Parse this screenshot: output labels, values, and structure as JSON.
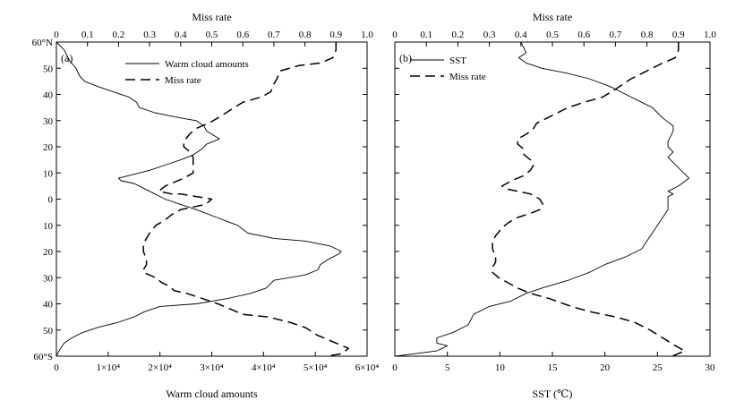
{
  "chart_data": [
    {
      "type": "line",
      "panel_label": "(a)",
      "title": "",
      "xlabel_bottom": "Warm cloud amounts",
      "xlabel_top": "Miss rate",
      "ylabel": "",
      "x_bottom_lim": [
        0,
        60000
      ],
      "x_bottom_ticks": [
        {
          "v": 0,
          "label": "0"
        },
        {
          "v": 10000,
          "label": "1×10⁴"
        },
        {
          "v": 20000,
          "label": "2×10⁴"
        },
        {
          "v": 30000,
          "label": "3×10⁴"
        },
        {
          "v": 40000,
          "label": "4×10⁴"
        },
        {
          "v": 50000,
          "label": "5×10⁴"
        },
        {
          "v": 60000,
          "label": "6×10⁴"
        }
      ],
      "x_top_lim": [
        0,
        1.0
      ],
      "x_top_ticks": [
        {
          "v": 0,
          "label": "0"
        },
        {
          "v": 0.1,
          "label": "0.1"
        },
        {
          "v": 0.2,
          "label": "0.2"
        },
        {
          "v": 0.3,
          "label": "0.3"
        },
        {
          "v": 0.4,
          "label": "0.4"
        },
        {
          "v": 0.5,
          "label": "0.5"
        },
        {
          "v": 0.6,
          "label": "0.6"
        },
        {
          "v": 0.7,
          "label": "0.7"
        },
        {
          "v": 0.8,
          "label": "0.8"
        },
        {
          "v": 0.9,
          "label": "0.9"
        },
        {
          "v": 1.0,
          "label": "1.0"
        }
      ],
      "ylim": [
        -60,
        60
      ],
      "y_ticks": [
        {
          "v": 60,
          "label": "60°N"
        },
        {
          "v": 50,
          "label": "50"
        },
        {
          "v": 40,
          "label": "40"
        },
        {
          "v": 30,
          "label": "30"
        },
        {
          "v": 20,
          "label": "20"
        },
        {
          "v": 10,
          "label": "10"
        },
        {
          "v": 0,
          "label": "0"
        },
        {
          "v": -10,
          "label": "10"
        },
        {
          "v": -20,
          "label": "20"
        },
        {
          "v": -30,
          "label": "30"
        },
        {
          "v": -40,
          "label": "40"
        },
        {
          "v": -50,
          "label": "50"
        },
        {
          "v": -60,
          "label": "60°S"
        }
      ],
      "series": [
        {
          "name": "Warm cloud amounts",
          "axis": "bottom",
          "style": "solid",
          "points": [
            [
              0,
              60
            ],
            [
              1500,
              57
            ],
            [
              2500,
              53
            ],
            [
              3800,
              50
            ],
            [
              4500,
              47
            ],
            [
              5500,
              45
            ],
            [
              8000,
              43
            ],
            [
              11000,
              41
            ],
            [
              14000,
              39
            ],
            [
              15500,
              37
            ],
            [
              16000,
              35
            ],
            [
              19000,
              33
            ],
            [
              24000,
              31
            ],
            [
              27000,
              30
            ],
            [
              28500,
              28
            ],
            [
              29000,
              26
            ],
            [
              31500,
              23
            ],
            [
              29000,
              21
            ],
            [
              28000,
              19
            ],
            [
              26500,
              17
            ],
            [
              24000,
              15
            ],
            [
              21000,
              13
            ],
            [
              18000,
              11
            ],
            [
              14000,
              9
            ],
            [
              12000,
              8
            ],
            [
              12500,
              7
            ],
            [
              15000,
              6
            ],
            [
              17000,
              4
            ],
            [
              19000,
              2
            ],
            [
              20000,
              1
            ],
            [
              21000,
              0
            ],
            [
              24000,
              -2
            ],
            [
              27000,
              -4
            ],
            [
              31000,
              -7
            ],
            [
              35000,
              -10
            ],
            [
              37000,
              -13
            ],
            [
              42000,
              -15
            ],
            [
              48000,
              -16
            ],
            [
              53000,
              -18
            ],
            [
              55000,
              -20
            ],
            [
              54500,
              -21
            ],
            [
              52500,
              -23
            ],
            [
              51000,
              -25
            ],
            [
              50500,
              -27
            ],
            [
              48000,
              -29
            ],
            [
              42000,
              -31
            ],
            [
              40500,
              -34
            ],
            [
              37500,
              -36
            ],
            [
              33000,
              -38
            ],
            [
              27000,
              -40
            ],
            [
              20000,
              -41
            ],
            [
              17000,
              -43
            ],
            [
              15000,
              -45
            ],
            [
              12000,
              -47
            ],
            [
              8000,
              -49
            ],
            [
              5000,
              -51
            ],
            [
              3000,
              -53
            ],
            [
              1500,
              -55
            ],
            [
              500,
              -58
            ],
            [
              0,
              -60
            ]
          ]
        },
        {
          "name": "Miss rate",
          "axis": "top",
          "style": "dashed",
          "points": [
            [
              0.9,
              60
            ],
            [
              0.9,
              57
            ],
            [
              0.89,
              54
            ],
            [
              0.85,
              52
            ],
            [
              0.78,
              51
            ],
            [
              0.72,
              49
            ],
            [
              0.71,
              46
            ],
            [
              0.7,
              44
            ],
            [
              0.69,
              41
            ],
            [
              0.66,
              39
            ],
            [
              0.6,
              37
            ],
            [
              0.56,
              34
            ],
            [
              0.52,
              31
            ],
            [
              0.49,
              29
            ],
            [
              0.45,
              27
            ],
            [
              0.43,
              25
            ],
            [
              0.41,
              22
            ],
            [
              0.41,
              20
            ],
            [
              0.43,
              18
            ],
            [
              0.44,
              16
            ],
            [
              0.44,
              14
            ],
            [
              0.44,
              12
            ],
            [
              0.44,
              10
            ],
            [
              0.41,
              8
            ],
            [
              0.35,
              5
            ],
            [
              0.33,
              3
            ],
            [
              0.37,
              2
            ],
            [
              0.4,
              2
            ],
            [
              0.45,
              1
            ],
            [
              0.5,
              0
            ],
            [
              0.48,
              -2
            ],
            [
              0.44,
              -3
            ],
            [
              0.4,
              -4
            ],
            [
              0.37,
              -6
            ],
            [
              0.35,
              -8
            ],
            [
              0.32,
              -10
            ],
            [
              0.3,
              -13
            ],
            [
              0.29,
              -15
            ],
            [
              0.28,
              -17
            ],
            [
              0.28,
              -20
            ],
            [
              0.29,
              -23
            ],
            [
              0.29,
              -25
            ],
            [
              0.28,
              -27
            ],
            [
              0.28,
              -28
            ],
            [
              0.3,
              -29
            ],
            [
              0.32,
              -30
            ],
            [
              0.34,
              -32
            ],
            [
              0.36,
              -33
            ],
            [
              0.38,
              -35
            ],
            [
              0.42,
              -36
            ],
            [
              0.47,
              -38
            ],
            [
              0.52,
              -40
            ],
            [
              0.56,
              -42
            ],
            [
              0.6,
              -44
            ],
            [
              0.68,
              -45
            ],
            [
              0.75,
              -47
            ],
            [
              0.8,
              -49
            ],
            [
              0.84,
              -52
            ],
            [
              0.88,
              -54
            ],
            [
              0.92,
              -56
            ],
            [
              0.94,
              -57
            ],
            [
              0.92,
              -59
            ],
            [
              0.87,
              -60
            ]
          ]
        }
      ],
      "legend": "top-left"
    },
    {
      "type": "line",
      "panel_label": "(b)",
      "title": "",
      "xlabel_bottom": "SST (℃)",
      "xlabel_top": "Miss rate",
      "ylabel": "",
      "x_bottom_lim": [
        0,
        30
      ],
      "x_bottom_ticks": [
        {
          "v": 0,
          "label": "0"
        },
        {
          "v": 5,
          "label": "5"
        },
        {
          "v": 10,
          "label": "10"
        },
        {
          "v": 15,
          "label": "15"
        },
        {
          "v": 20,
          "label": "20"
        },
        {
          "v": 25,
          "label": "25"
        },
        {
          "v": 30,
          "label": "30"
        }
      ],
      "x_top_lim": [
        0,
        1.0
      ],
      "x_top_ticks": [
        {
          "v": 0,
          "label": "0"
        },
        {
          "v": 0.1,
          "label": "0.1"
        },
        {
          "v": 0.2,
          "label": "0.2"
        },
        {
          "v": 0.3,
          "label": "0.3"
        },
        {
          "v": 0.4,
          "label": "0.4"
        },
        {
          "v": 0.5,
          "label": "0.5"
        },
        {
          "v": 0.6,
          "label": "0.6"
        },
        {
          "v": 0.7,
          "label": "0.7"
        },
        {
          "v": 0.8,
          "label": "0.8"
        },
        {
          "v": 0.9,
          "label": "0.9"
        },
        {
          "v": 1.0,
          "label": "1.0"
        }
      ],
      "ylim": [
        -60,
        60
      ],
      "series": [
        {
          "name": "SST",
          "axis": "bottom",
          "style": "solid",
          "points": [
            [
              12,
              60
            ],
            [
              12.5,
              56
            ],
            [
              11.8,
              54
            ],
            [
              12.5,
              52
            ],
            [
              14,
              50
            ],
            [
              16.5,
              48
            ],
            [
              18.5,
              46
            ],
            [
              20.5,
              43
            ],
            [
              22,
              40
            ],
            [
              23.5,
              37
            ],
            [
              24.5,
              35
            ],
            [
              25.5,
              31
            ],
            [
              26.5,
              28
            ],
            [
              26.5,
              26
            ],
            [
              26,
              22
            ],
            [
              26,
              20
            ],
            [
              26.5,
              18
            ],
            [
              26,
              16
            ],
            [
              26.5,
              14
            ],
            [
              27.5,
              10
            ],
            [
              28,
              8
            ],
            [
              27,
              5
            ],
            [
              26,
              3
            ],
            [
              26.5,
              2
            ],
            [
              26,
              1
            ],
            [
              26,
              -1
            ],
            [
              26,
              -4
            ],
            [
              25.5,
              -7
            ],
            [
              25,
              -10
            ],
            [
              24.5,
              -13
            ],
            [
              24,
              -16
            ],
            [
              23.5,
              -19
            ],
            [
              22,
              -22
            ],
            [
              20,
              -25
            ],
            [
              18.5,
              -28
            ],
            [
              16.5,
              -31
            ],
            [
              14,
              -34
            ],
            [
              12.5,
              -36
            ],
            [
              11,
              -39
            ],
            [
              9,
              -41
            ],
            [
              7.5,
              -44
            ],
            [
              7,
              -48
            ],
            [
              5.5,
              -51
            ],
            [
              4,
              -53
            ],
            [
              4,
              -55
            ],
            [
              5,
              -56
            ],
            [
              4,
              -58
            ],
            [
              2,
              -59
            ],
            [
              0,
              -60
            ]
          ]
        },
        {
          "name": "Miss rate",
          "axis": "top",
          "style": "dashed",
          "points": [
            [
              0.9,
              60
            ],
            [
              0.9,
              57
            ],
            [
              0.89,
              54
            ],
            [
              0.85,
              52
            ],
            [
              0.8,
              49
            ],
            [
              0.75,
              46
            ],
            [
              0.7,
              42
            ],
            [
              0.66,
              39
            ],
            [
              0.6,
              37
            ],
            [
              0.55,
              35
            ],
            [
              0.5,
              32
            ],
            [
              0.45,
              29
            ],
            [
              0.44,
              27
            ],
            [
              0.42,
              25
            ],
            [
              0.39,
              23
            ],
            [
              0.39,
              21
            ],
            [
              0.41,
              19
            ],
            [
              0.41,
              17
            ],
            [
              0.43,
              15
            ],
            [
              0.44,
              13
            ],
            [
              0.43,
              11
            ],
            [
              0.41,
              9
            ],
            [
              0.37,
              7
            ],
            [
              0.34,
              5
            ],
            [
              0.35,
              4
            ],
            [
              0.39,
              3
            ],
            [
              0.43,
              2
            ],
            [
              0.46,
              0
            ],
            [
              0.47,
              -2
            ],
            [
              0.46,
              -4
            ],
            [
              0.44,
              -5
            ],
            [
              0.39,
              -7
            ],
            [
              0.36,
              -9
            ],
            [
              0.34,
              -11
            ],
            [
              0.32,
              -14
            ],
            [
              0.31,
              -16
            ],
            [
              0.31,
              -19
            ],
            [
              0.32,
              -22
            ],
            [
              0.32,
              -24
            ],
            [
              0.31,
              -26
            ],
            [
              0.31,
              -28
            ],
            [
              0.33,
              -30
            ],
            [
              0.36,
              -32
            ],
            [
              0.39,
              -34
            ],
            [
              0.43,
              -36
            ],
            [
              0.49,
              -38
            ],
            [
              0.56,
              -41
            ],
            [
              0.62,
              -43
            ],
            [
              0.7,
              -45
            ],
            [
              0.76,
              -47
            ],
            [
              0.81,
              -50
            ],
            [
              0.85,
              -53
            ],
            [
              0.89,
              -56
            ],
            [
              0.92,
              -58
            ],
            [
              0.9,
              -59
            ],
            [
              0.88,
              -60
            ]
          ]
        }
      ],
      "legend": "top-left"
    }
  ]
}
